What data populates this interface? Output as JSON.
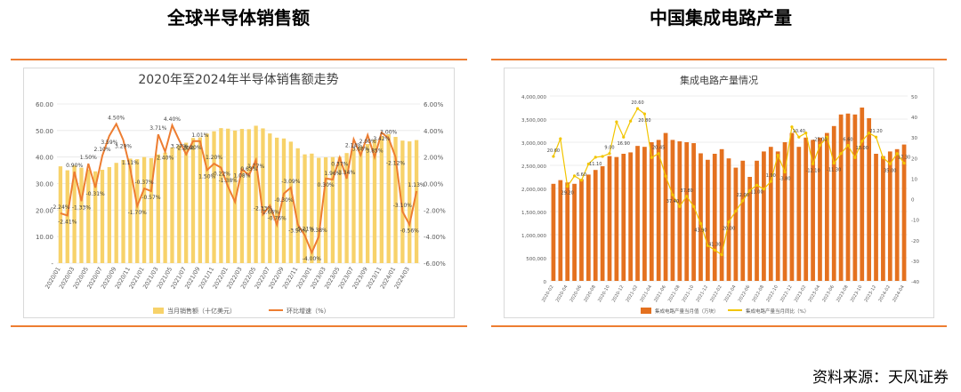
{
  "left_panel": {
    "heading": "全球半导体销售额"
  },
  "right_panel": {
    "heading": "中国集成电路产量"
  },
  "source": "资料来源：天风证券",
  "colors": {
    "rule": "#ED7D31",
    "bar_left": "#F7D26A",
    "line_left": "#ED7D31",
    "bar_right": "#E4711F",
    "line_right": "#F2C500"
  },
  "chart_data": [
    {
      "type": "bar",
      "title": "2020年至2024年半导体销售额走势",
      "categories": [
        "2020/01",
        "2020/02",
        "2020/03",
        "2020/04",
        "2020/05",
        "2020/06",
        "2020/07",
        "2020/08",
        "2020/09",
        "2020/10",
        "2020/11",
        "2020/12",
        "2021/01",
        "2021/02",
        "2021/03",
        "2021/04",
        "2021/05",
        "2021/06",
        "2021/07",
        "2021/08",
        "2021/09",
        "2021/10",
        "2021/11",
        "2021/12",
        "2022/01",
        "2022/02",
        "2022/03",
        "2022/04",
        "2022/05",
        "2022/06",
        "2022/07",
        "2022/08",
        "2022/09",
        "2022/10",
        "2022/11",
        "2022/12",
        "2023/01",
        "2023/02",
        "2023/03",
        "2023/04",
        "2023/05",
        "2023/06",
        "2023/07",
        "2023/08",
        "2023/09",
        "2023/10",
        "2023/11",
        "2023/12",
        "2024/01",
        "2024/02",
        "2024/03",
        "2024/04"
      ],
      "x_tick_labels": [
        "2020/01",
        "2020/03",
        "2020/05",
        "2020/07",
        "2020/09",
        "2020/11",
        "2021/01",
        "2021/03",
        "2021/05",
        "2021/07",
        "2021/09",
        "2021/11",
        "2022/01",
        "2022/03",
        "2022/05",
        "2022/07",
        "2022/09",
        "2022/11",
        "2023/01",
        "2023/03",
        "2023/05",
        "2023/07",
        "2023/09",
        "2023/11",
        "2024/01",
        "2024/03"
      ],
      "series": [
        {
          "name": "当月销售额（十亿美元）",
          "axis": "left",
          "values": [
            36.5,
            35.0,
            36.8,
            36.0,
            35.3,
            34.6,
            35.2,
            36.2,
            37.8,
            38.9,
            39.4,
            39.2,
            40.0,
            39.6,
            41.0,
            41.7,
            43.6,
            44.5,
            45.4,
            47.2,
            47.4,
            48.8,
            49.7,
            50.9,
            50.7,
            50.0,
            50.6,
            50.5,
            51.8,
            50.8,
            48.9,
            47.3,
            47.0,
            45.8,
            43.3,
            41.0,
            41.3,
            39.7,
            39.9,
            40.0,
            40.1,
            41.5,
            43.2,
            44.0,
            44.9,
            46.6,
            47.9,
            48.6,
            47.6,
            46.2,
            45.9,
            46.4
          ]
        },
        {
          "name": "环比增速（%）",
          "axis": "right",
          "values": [
            -2.24,
            -2.41,
            0.9,
            -1.33,
            1.5,
            -0.31,
            2.1,
            3.59,
            4.5,
            3.29,
            1.11,
            -1.7,
            -0.37,
            -0.57,
            3.71,
            2.4,
            4.4,
            3.27,
            2.2,
            3.2,
            3.2,
            1.01,
            1.5,
            1.2,
            -0.22,
            -1.38,
            1.08,
            0.63,
            1.77,
            -2.33,
            -1.66,
            -3.1,
            -0.76,
            -0.3,
            -3.09,
            -3.9,
            -5.21,
            -4.0,
            0.38,
            0.3,
            1.96,
            0.37,
            3.34,
            2.14,
            3.66,
            2.0,
            3.85,
            3.42,
            2.0,
            -2.12,
            -3.1,
            -0.56
          ]
        }
      ],
      "visible_point_labels": [
        "-2.24%",
        "-2.41%",
        "0.90%",
        "-1.33%",
        "1.50%",
        "-0.31%",
        "2.10%",
        "3.59%",
        "4.50%",
        "3.29%",
        "1.11%",
        "-1.70%",
        "-0.37%",
        "-0.57%",
        "3.71%",
        "2.40%",
        "4.40%",
        "3.27%",
        "2.20%",
        "3.20%",
        "1.01%",
        "1.50%",
        "1.20%",
        "-0.22%",
        "-1.38%",
        "1.08%",
        "0.63%",
        "1.77%",
        "-2.33%",
        "-1.66%",
        "-0.76%",
        "-0.30%",
        "-3.09%",
        "-3.90%",
        "-5.21%",
        "-4.00%",
        "0.38%",
        "0.30%",
        "1.96%",
        "0.37%",
        "3.34%",
        "2.14%",
        "3.66%",
        "2.00%",
        "3.85%",
        "3.42%",
        "2.00%",
        "-2.12%",
        "-3.10%",
        "-0.56%",
        "1.13%"
      ],
      "y_left": {
        "range": [
          0,
          60
        ],
        "ticks": [
          "-",
          "10.00",
          "20.00",
          "30.00",
          "40.00",
          "50.00",
          "60.00"
        ]
      },
      "y_right": {
        "range": [
          -6,
          6
        ],
        "ticks": [
          "-6.00%",
          "-4.00%",
          "-2.00%",
          "0.00%",
          "2.00%",
          "4.00%",
          "6.00%"
        ]
      },
      "legend": {
        "bar_label": "当月销售额（十亿美元）",
        "line_label": "环比增速（%）",
        "placement": "bottom"
      },
      "grid": true
    },
    {
      "type": "bar",
      "title": "集成电路产量情况",
      "categories": [
        "2020-02",
        "2020-03",
        "2020-04",
        "2020-05",
        "2020-06",
        "2020-07",
        "2020-08",
        "2020-09",
        "2020-10",
        "2020-11",
        "2020-12",
        "2021-01",
        "2021-02",
        "2021-03",
        "2021-04",
        "2021-05",
        "2021-06",
        "2021-07",
        "2021-08",
        "2021-09",
        "2021-10",
        "2021-11",
        "2021-12",
        "2022-01",
        "2022-02",
        "2022-03",
        "2022-04",
        "2022-05",
        "2022-06",
        "2022-07",
        "2022-08",
        "2022-09",
        "2022-10",
        "2022-11",
        "2022-12",
        "2023-01",
        "2023-02",
        "2023-03",
        "2023-04",
        "2023-05",
        "2023-06",
        "2023-07",
        "2023-08",
        "2023-09",
        "2023-10",
        "2023-11",
        "2023-12",
        "2024-01",
        "2024-02",
        "2024-03",
        "2024-04"
      ],
      "x_tick_labels": [
        "2020-02",
        "2020-04",
        "2020-06",
        "2020-08",
        "2020-10",
        "2020-12",
        "2021-02",
        "2021-04",
        "2021-06",
        "2021-08",
        "2021-10",
        "2021-12",
        "2022-02",
        "2022-04",
        "2022-06",
        "2022-08",
        "2022-10",
        "2022-12",
        "2023-02",
        "2023-04",
        "2023-06",
        "2023-08",
        "2023-10",
        "2023-12",
        "2024-02",
        "2024-04"
      ],
      "series": [
        {
          "name": "集成电路产量当月值（万块）",
          "axis": "left",
          "values": [
            2100000,
            2180000,
            2130000,
            2100000,
            2200000,
            2300000,
            2400000,
            2480000,
            2700000,
            2680000,
            2750000,
            2780000,
            2920000,
            2900000,
            3000000,
            3050000,
            3200000,
            3050000,
            3020000,
            3000000,
            2980000,
            2760000,
            2620000,
            2750000,
            2850000,
            2650000,
            2450000,
            2600000,
            2250000,
            2600000,
            2800000,
            2900000,
            2800000,
            3000000,
            3200000,
            2900000,
            3100000,
            3050000,
            3100000,
            3200000,
            3350000,
            3600000,
            3620000,
            3600000,
            3750000,
            3520000,
            2750000,
            2700000,
            2800000,
            2850000,
            2950000
          ]
        },
        {
          "name": "集成电路产量当月同比（%）",
          "axis": "right",
          "values": [
            20.6,
            29.2,
            6.0,
            11.1,
            9.0,
            16.9,
            20.2,
            20.6,
            22.0,
            37.4,
            30.0,
            37.8,
            43.9,
            41.3,
            20.0,
            22.0,
            11.0,
            1.9,
            -3.8,
            1.2,
            -3.8,
            -12.1,
            -22.8,
            -25.0,
            -27.3,
            -11.3,
            -6.0,
            -1.0,
            4.0,
            6.6,
            4.7,
            8.4,
            21.2,
            13.0,
            35.0,
            30.0,
            32.0,
            17.0,
            26.0,
            30.0,
            17.3,
            22.0,
            26.0,
            20.0,
            28.0,
            32.0,
            30.0,
            20.0,
            17.0,
            22.0,
            17.3
          ]
        }
      ],
      "visible_point_labels": [
        "20.60",
        "29.20",
        "6.60",
        "11.10",
        "9.00",
        "16.90",
        "20.60",
        "20.80",
        "20.45",
        "37.40",
        "37.80",
        "43.90",
        "41.30",
        "20.00",
        "22.00",
        "11.00",
        "1.90",
        "-3.80",
        "10.40",
        "-12.10",
        "-25.00",
        "-11.30",
        "6.60",
        "13.00",
        "21.20",
        "35.00",
        "17.30"
      ],
      "y_left": {
        "range": [
          0,
          4000000
        ],
        "ticks": [
          "0",
          "500,000",
          "1,000,000",
          "1,500,000",
          "2,000,000",
          "2,500,000",
          "3,000,000",
          "3,500,000",
          "4,000,000"
        ]
      },
      "y_right": {
        "range": [
          -40,
          50
        ],
        "ticks": [
          "-40",
          "-30",
          "-20",
          "-10",
          "0",
          "10",
          "20",
          "30",
          "40",
          "50"
        ]
      },
      "legend": {
        "bar_label": "集成电路产量当月值（万块）",
        "line_label": "集成电路产量当月同比（%）",
        "placement": "bottom"
      },
      "grid": true
    }
  ]
}
